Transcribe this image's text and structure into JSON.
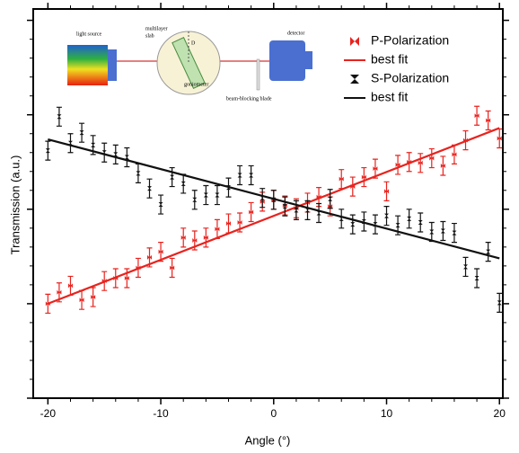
{
  "chart_data": {
    "type": "errorbar",
    "xlabel": "Angle (°)",
    "ylabel": "Transmission (a.u.)",
    "xlim": [
      -21.3,
      20.3
    ],
    "ylim": [
      0,
      4.12
    ],
    "xticks": [
      -20,
      -10,
      0,
      10,
      20
    ],
    "xminorticks": [
      -18,
      -16,
      -14,
      -12,
      -8,
      -6,
      -4,
      -2,
      2,
      4,
      6,
      8,
      12,
      14,
      16,
      18
    ],
    "yticks": [
      0,
      1,
      2,
      3,
      4
    ],
    "yminorticks": [
      0.2,
      0.4,
      0.6,
      0.8,
      1.2,
      1.4,
      1.6,
      1.8,
      2.2,
      2.4,
      2.6,
      2.8,
      3.2,
      3.4,
      3.6,
      3.8
    ],
    "legend": "upper right",
    "series": [
      {
        "name": "P-Polarization",
        "color": "#e8231e",
        "kind": "points",
        "marker": "bowtie",
        "x": [
          -20,
          -19,
          -18,
          -17,
          -16,
          -15,
          -14,
          -13,
          -12,
          -11,
          -10,
          -9,
          -8,
          -7,
          -6,
          -5,
          -4,
          -3,
          -2,
          -1,
          0,
          1,
          2,
          3,
          4,
          5,
          6,
          7,
          8,
          9,
          10,
          11,
          12,
          13,
          14,
          15,
          16,
          17,
          18,
          19,
          20
        ],
        "values": [
          1.0,
          1.12,
          1.19,
          1.04,
          1.07,
          1.24,
          1.27,
          1.27,
          1.38,
          1.49,
          1.55,
          1.38,
          1.7,
          1.67,
          1.7,
          1.79,
          1.85,
          1.86,
          1.97,
          2.08,
          2.1,
          2.04,
          2.01,
          2.07,
          2.13,
          2.03,
          2.32,
          2.24,
          2.34,
          2.43,
          2.19,
          2.47,
          2.5,
          2.49,
          2.54,
          2.46,
          2.58,
          2.73,
          2.99,
          2.94,
          2.75
        ],
        "errors": [
          0.1,
          0.1,
          0.1,
          0.1,
          0.1,
          0.1,
          0.1,
          0.1,
          0.1,
          0.1,
          0.1,
          0.1,
          0.1,
          0.1,
          0.1,
          0.1,
          0.1,
          0.1,
          0.1,
          0.1,
          0.1,
          0.1,
          0.1,
          0.1,
          0.1,
          0.1,
          0.1,
          0.1,
          0.1,
          0.1,
          0.1,
          0.1,
          0.1,
          0.1,
          0.1,
          0.1,
          0.1,
          0.1,
          0.1,
          0.1,
          0.1
        ]
      },
      {
        "name": "best fit",
        "color": "#e8231e",
        "kind": "line",
        "x": [
          -20,
          20
        ],
        "values": [
          1.0,
          2.86
        ]
      },
      {
        "name": "S-Polarization",
        "color": "#111111",
        "kind": "points",
        "marker": "hourglass",
        "x": [
          -20,
          -19,
          -18,
          -17,
          -16,
          -15,
          -14,
          -13,
          -12,
          -11,
          -10,
          -9,
          -8,
          -7,
          -6,
          -5,
          -4,
          -3,
          -2,
          -1,
          0,
          1,
          2,
          3,
          4,
          5,
          6,
          7,
          8,
          9,
          10,
          11,
          12,
          13,
          14,
          15,
          16,
          17,
          18,
          19,
          20
        ],
        "values": [
          2.62,
          2.98,
          2.7,
          2.81,
          2.68,
          2.6,
          2.58,
          2.55,
          2.38,
          2.22,
          2.05,
          2.34,
          2.27,
          2.1,
          2.15,
          2.15,
          2.23,
          2.36,
          2.36,
          2.12,
          2.1,
          2.03,
          1.99,
          1.99,
          1.96,
          2.11,
          1.9,
          1.84,
          1.87,
          1.84,
          1.93,
          1.83,
          1.9,
          1.86,
          1.76,
          1.77,
          1.75,
          1.39,
          1.27,
          1.55,
          1.01
        ],
        "errors": [
          0.1,
          0.1,
          0.1,
          0.1,
          0.1,
          0.1,
          0.1,
          0.1,
          0.1,
          0.1,
          0.1,
          0.1,
          0.1,
          0.1,
          0.1,
          0.1,
          0.1,
          0.1,
          0.1,
          0.1,
          0.1,
          0.1,
          0.1,
          0.1,
          0.1,
          0.1,
          0.1,
          0.1,
          0.1,
          0.1,
          0.1,
          0.1,
          0.1,
          0.1,
          0.1,
          0.1,
          0.1,
          0.1,
          0.1,
          0.1,
          0.1
        ]
      },
      {
        "name": "best fit",
        "color": "#111111",
        "kind": "line",
        "x": [
          -20,
          20
        ],
        "values": [
          2.74,
          1.48
        ]
      }
    ],
    "inset": {
      "light_source": "light source",
      "slab": "multilayer",
      "slab2": "slab",
      "goniometer": "goniometer",
      "detector": "detector",
      "blade": "beam-blocking blade",
      "angle": "D"
    }
  }
}
